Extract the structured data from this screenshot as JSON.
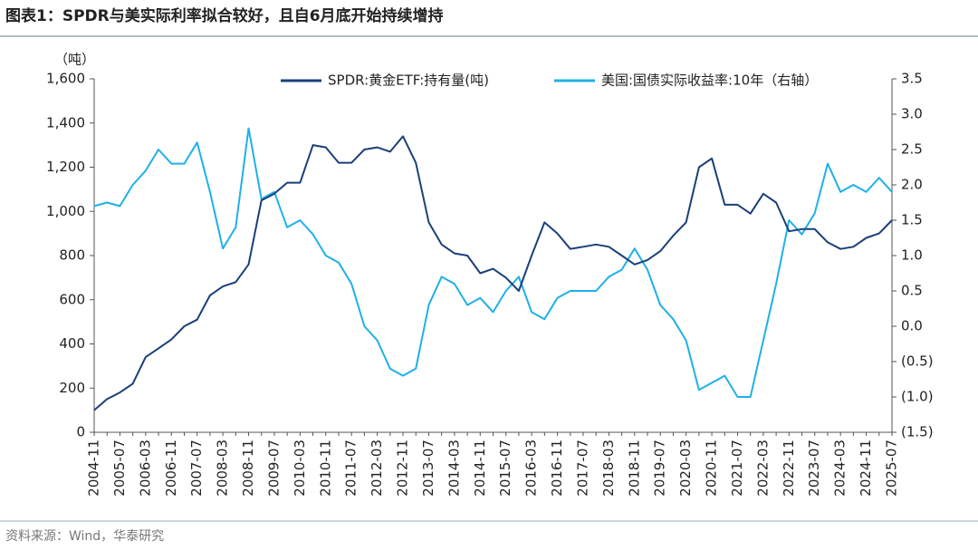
{
  "chart_data": {
    "type": "line",
    "title": "图表1：SPDR与美实际利率拟合较好，且自6月底开始持续增持",
    "y_label": "（吨）",
    "source": "资料来源：Wind，华泰研究",
    "categories": [
      "2004-11",
      null,
      "2005-07",
      null,
      "2006-03",
      null,
      "2006-11",
      null,
      "2007-07",
      null,
      "2008-03",
      null,
      "2008-11",
      null,
      "2009-07",
      null,
      "2010-03",
      null,
      "2010-11",
      null,
      "2011-07",
      null,
      "2012-03",
      null,
      "2012-11",
      null,
      "2013-07",
      null,
      "2014-03",
      null,
      "2014-11",
      null,
      "2015-07",
      null,
      "2016-03",
      null,
      "2016-11",
      null,
      "2017-07",
      null,
      "2018-03",
      null,
      "2018-11",
      null,
      "2019-07",
      null,
      "2020-03",
      null,
      "2020-11",
      null,
      "2021-07",
      null,
      "2022-03",
      null,
      "2022-11",
      null,
      "2023-07",
      null,
      "2024-03",
      null,
      "2024-11",
      null,
      "2025-07"
    ],
    "series": [
      {
        "name": "SPDR:黄金ETF:持有量(吨)",
        "color": "#1a3f7a",
        "axis": "y",
        "values": [
          100,
          150,
          180,
          220,
          340,
          380,
          420,
          480,
          510,
          620,
          660,
          680,
          760,
          1050,
          1080,
          1130,
          1130,
          1300,
          1290,
          1220,
          1220,
          1280,
          1290,
          1270,
          1340,
          1220,
          950,
          850,
          810,
          800,
          720,
          740,
          700,
          640,
          800,
          950,
          900,
          830,
          840,
          850,
          840,
          800,
          760,
          780,
          820,
          890,
          950,
          1200,
          1240,
          1030,
          1030,
          990,
          1080,
          1040,
          910,
          920,
          920,
          860,
          830,
          840,
          880,
          900,
          960
        ]
      },
      {
        "name": "美国:国债实际收益率:10年（右轴）",
        "color": "#1fb0e8",
        "axis": "y2",
        "values": [
          1.7,
          1.75,
          1.7,
          2.0,
          2.2,
          2.5,
          2.3,
          2.3,
          2.6,
          1.9,
          1.1,
          1.4,
          2.8,
          1.8,
          1.9,
          1.4,
          1.5,
          1.3,
          1.0,
          0.9,
          0.6,
          0.0,
          -0.2,
          -0.6,
          -0.7,
          -0.6,
          0.3,
          0.7,
          0.6,
          0.3,
          0.4,
          0.2,
          0.5,
          0.7,
          0.2,
          0.1,
          0.4,
          0.5,
          0.5,
          0.5,
          0.7,
          0.8,
          1.1,
          0.8,
          0.3,
          0.1,
          -0.2,
          -0.9,
          -0.8,
          -0.7,
          -1.0,
          -1.0,
          -0.2,
          0.6,
          1.5,
          1.3,
          1.6,
          2.3,
          1.9,
          2.0,
          1.9,
          2.1,
          1.9
        ]
      }
    ],
    "ylim": [
      0,
      1600
    ],
    "yticks": [
      0,
      200,
      400,
      600,
      800,
      {
        "value": 1000,
        "label": "1,000"
      },
      {
        "value": 1200,
        "label": "1,200"
      },
      {
        "value": 1400,
        "label": "1,400"
      },
      {
        "value": 1600,
        "label": "1,600"
      }
    ],
    "y2lim": [
      -1.5,
      3.5
    ],
    "y2ticks": [
      {
        "value": -1.5,
        "label": "(1.5)"
      },
      {
        "value": -1.0,
        "label": "(1.0)"
      },
      {
        "value": -0.5,
        "label": "(0.5)"
      },
      {
        "value": 0.0,
        "label": "0.0"
      },
      0.5,
      {
        "value": 1.0,
        "label": "1.0"
      },
      1.5,
      {
        "value": 2.0,
        "label": "2.0"
      },
      2.5,
      {
        "value": 3.0,
        "label": "3.0"
      },
      3.5
    ],
    "grid": false,
    "legend": "top"
  }
}
